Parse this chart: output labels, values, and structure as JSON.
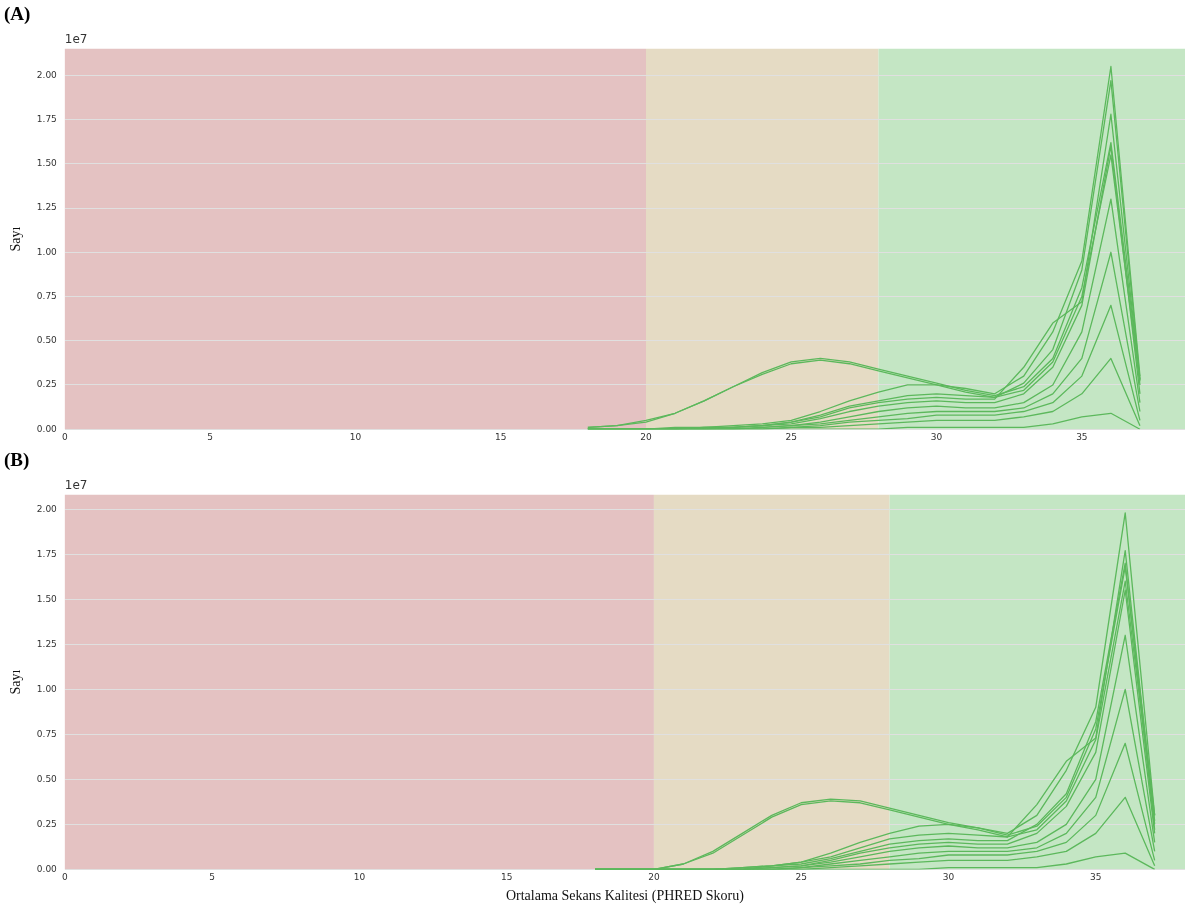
{
  "chart_data": [
    {
      "type": "line",
      "title": "(A)",
      "ylabel": "Sayı",
      "annotations": [
        "1e7"
      ],
      "marker": "none",
      "grid": "y",
      "x": [
        18,
        19,
        20,
        21,
        22,
        23,
        24,
        25,
        26,
        27,
        28,
        29,
        30,
        31,
        32,
        33,
        34,
        35,
        36,
        37
      ],
      "xlim": [
        0,
        38.55
      ],
      "xticks": [
        0,
        5,
        10,
        15,
        20,
        25,
        30,
        35
      ],
      "ylim": [
        0,
        2.15
      ],
      "yticks": [
        {
          "value": 0,
          "label": "0.00"
        },
        {
          "value": 0.25,
          "label": "0.25"
        },
        {
          "value": 0.5,
          "label": "0.50"
        },
        {
          "value": 0.75,
          "label": "0.75"
        },
        {
          "value": 1,
          "label": "1.00"
        },
        {
          "value": 1.25,
          "label": "1.25"
        },
        {
          "value": 1.5,
          "label": "1.50"
        },
        {
          "value": 1.75,
          "label": "1.75"
        },
        {
          "value": 2,
          "label": "2.00"
        }
      ],
      "bands": [
        {
          "axis": "x",
          "from": 0,
          "to": 20,
          "color": "#e4c2c2"
        },
        {
          "axis": "x",
          "from": 20,
          "to": 28,
          "color": "#e5dbc4"
        },
        {
          "axis": "x",
          "from": 28,
          "to": 38.55,
          "color": "#c4e6c4"
        }
      ],
      "series": [
        {
          "color": "#5cb85c",
          "values": [
            0.01,
            0.02,
            0.04,
            0.09,
            0.16,
            0.24,
            0.31,
            0.37,
            0.39,
            0.37,
            0.33,
            0.29,
            0.25,
            0.21,
            0.18,
            0.22,
            0.38,
            0.75,
            1.55,
            0.25
          ]
        },
        {
          "color": "#5cb85c",
          "values": [
            0.01,
            0.02,
            0.05,
            0.09,
            0.16,
            0.24,
            0.32,
            0.38,
            0.4,
            0.38,
            0.34,
            0.3,
            0.26,
            0.22,
            0.19,
            0.24,
            0.4,
            0.8,
            1.62,
            0.28
          ]
        },
        {
          "color": "#5cb85c",
          "values": [
            0,
            0,
            0,
            0.01,
            0.01,
            0.02,
            0.03,
            0.05,
            0.1,
            0.16,
            0.21,
            0.25,
            0.25,
            0.23,
            0.2,
            0.3,
            0.55,
            0.95,
            2.05,
            0.3
          ]
        },
        {
          "color": "#5cb85c",
          "values": [
            0,
            0,
            0,
            0,
            0.01,
            0.01,
            0.02,
            0.04,
            0.08,
            0.13,
            0.16,
            0.19,
            0.2,
            0.19,
            0.18,
            0.26,
            0.45,
            0.9,
            1.97,
            0.28
          ]
        },
        {
          "color": "#5cb85c",
          "values": [
            0,
            0,
            0,
            0,
            0.01,
            0.01,
            0.02,
            0.04,
            0.07,
            0.12,
            0.15,
            0.17,
            0.18,
            0.17,
            0.17,
            0.35,
            0.6,
            0.72,
            1.78,
            0.27
          ]
        },
        {
          "color": "#5cb85c",
          "values": [
            0,
            0,
            0,
            0,
            0,
            0.01,
            0.02,
            0.03,
            0.06,
            0.1,
            0.13,
            0.15,
            0.16,
            0.15,
            0.15,
            0.2,
            0.35,
            0.7,
            1.6,
            0.2
          ]
        },
        {
          "color": "#5cb85c",
          "values": [
            0,
            0,
            0,
            0,
            0,
            0,
            0.01,
            0.02,
            0.04,
            0.07,
            0.1,
            0.12,
            0.13,
            0.12,
            0.12,
            0.15,
            0.25,
            0.55,
            1.3,
            0.15
          ]
        },
        {
          "color": "#5cb85c",
          "values": [
            0,
            0,
            0,
            0,
            0,
            0,
            0.01,
            0.02,
            0.03,
            0.05,
            0.07,
            0.09,
            0.1,
            0.1,
            0.1,
            0.12,
            0.2,
            0.4,
            1.0,
            0.1
          ]
        },
        {
          "color": "#5cb85c",
          "values": [
            0,
            0,
            0,
            0,
            0,
            0,
            0,
            0.01,
            0.02,
            0.04,
            0.05,
            0.06,
            0.08,
            0.08,
            0.08,
            0.1,
            0.15,
            0.3,
            0.7,
            0.05
          ]
        },
        {
          "color": "#5cb85c",
          "values": [
            0,
            0,
            0,
            0,
            0,
            0,
            0,
            0.01,
            0.01,
            0.02,
            0.03,
            0.04,
            0.05,
            0.05,
            0.05,
            0.07,
            0.1,
            0.2,
            0.4,
            0.02
          ]
        },
        {
          "color": "#5cb85c",
          "values": [
            0,
            0,
            0,
            0,
            0,
            0,
            0,
            0,
            0,
            0,
            0,
            0.01,
            0.01,
            0.01,
            0.01,
            0.01,
            0.03,
            0.07,
            0.09,
            0
          ]
        }
      ]
    },
    {
      "type": "line",
      "title": "(B)",
      "xlabel": "Ortalama Sekans Kalitesi (PHRED Skoru)",
      "ylabel": "Sayı",
      "annotations": [
        "1e7"
      ],
      "marker": "none",
      "grid": "y",
      "x": [
        18,
        19,
        20,
        21,
        22,
        23,
        24,
        25,
        26,
        27,
        28,
        29,
        30,
        31,
        32,
        33,
        34,
        35,
        36,
        37
      ],
      "xlim": [
        0,
        38.03
      ],
      "xticks": [
        0,
        5,
        10,
        15,
        20,
        25,
        30,
        35
      ],
      "ylim": [
        0,
        2.08
      ],
      "yticks": [
        {
          "value": 0,
          "label": "0.00"
        },
        {
          "value": 0.25,
          "label": "0.25"
        },
        {
          "value": 0.5,
          "label": "0.50"
        },
        {
          "value": 0.75,
          "label": "0.75"
        },
        {
          "value": 1,
          "label": "1.00"
        },
        {
          "value": 1.25,
          "label": "1.25"
        },
        {
          "value": 1.5,
          "label": "1.50"
        },
        {
          "value": 1.75,
          "label": "1.75"
        },
        {
          "value": 2,
          "label": "2.00"
        }
      ],
      "bands": [
        {
          "axis": "x",
          "from": 0,
          "to": 20,
          "color": "#e4c2c2"
        },
        {
          "axis": "x",
          "from": 20,
          "to": 28,
          "color": "#e5dbc4"
        },
        {
          "axis": "x",
          "from": 28,
          "to": 38.03,
          "color": "#c4e6c4"
        }
      ],
      "series": [
        {
          "color": "#5cb85c",
          "values": [
            0,
            0,
            0,
            0.03,
            0.09,
            0.19,
            0.29,
            0.36,
            0.38,
            0.37,
            0.33,
            0.29,
            0.25,
            0.22,
            0.18,
            0.22,
            0.38,
            0.72,
            1.6,
            0.27
          ]
        },
        {
          "color": "#5cb85c",
          "values": [
            0,
            0,
            0,
            0.03,
            0.1,
            0.2,
            0.3,
            0.37,
            0.39,
            0.38,
            0.34,
            0.3,
            0.26,
            0.23,
            0.19,
            0.24,
            0.4,
            0.78,
            1.68,
            0.3
          ]
        },
        {
          "color": "#5cb85c",
          "values": [
            0,
            0,
            0,
            0,
            0,
            0.01,
            0.02,
            0.04,
            0.09,
            0.15,
            0.2,
            0.24,
            0.25,
            0.23,
            0.2,
            0.3,
            0.55,
            0.9,
            1.98,
            0.3
          ]
        },
        {
          "color": "#5cb85c",
          "values": [
            0,
            0,
            0,
            0,
            0,
            0.01,
            0.02,
            0.04,
            0.07,
            0.12,
            0.17,
            0.19,
            0.2,
            0.19,
            0.18,
            0.36,
            0.6,
            0.73,
            1.77,
            0.25
          ]
        },
        {
          "color": "#5cb85c",
          "values": [
            0,
            0,
            0,
            0,
            0,
            0,
            0.02,
            0.03,
            0.06,
            0.1,
            0.14,
            0.16,
            0.17,
            0.16,
            0.16,
            0.25,
            0.42,
            0.82,
            1.7,
            0.22
          ]
        },
        {
          "color": "#5cb85c",
          "values": [
            0,
            0,
            0,
            0,
            0,
            0,
            0.01,
            0.02,
            0.05,
            0.09,
            0.12,
            0.14,
            0.15,
            0.14,
            0.14,
            0.2,
            0.35,
            0.65,
            1.55,
            0.2
          ]
        },
        {
          "color": "#5cb85c",
          "values": [
            0,
            0,
            0,
            0,
            0,
            0,
            0.01,
            0.02,
            0.04,
            0.07,
            0.1,
            0.12,
            0.13,
            0.12,
            0.12,
            0.15,
            0.25,
            0.5,
            1.3,
            0.15
          ]
        },
        {
          "color": "#5cb85c",
          "values": [
            0,
            0,
            0,
            0,
            0,
            0,
            0,
            0.01,
            0.03,
            0.05,
            0.07,
            0.09,
            0.1,
            0.1,
            0.1,
            0.12,
            0.2,
            0.4,
            1.0,
            0.1
          ]
        },
        {
          "color": "#5cb85c",
          "values": [
            0,
            0,
            0,
            0,
            0,
            0,
            0,
            0.01,
            0.02,
            0.03,
            0.05,
            0.06,
            0.08,
            0.08,
            0.08,
            0.1,
            0.15,
            0.3,
            0.7,
            0.05
          ]
        },
        {
          "color": "#5cb85c",
          "values": [
            0,
            0,
            0,
            0,
            0,
            0,
            0,
            0,
            0.01,
            0.02,
            0.03,
            0.04,
            0.05,
            0.05,
            0.05,
            0.07,
            0.1,
            0.2,
            0.4,
            0.02
          ]
        },
        {
          "color": "#5cb85c",
          "values": [
            0,
            0,
            0,
            0,
            0,
            0,
            0,
            0,
            0,
            0,
            0,
            0,
            0.01,
            0.01,
            0.01,
            0.01,
            0.03,
            0.07,
            0.09,
            0
          ]
        }
      ]
    }
  ]
}
